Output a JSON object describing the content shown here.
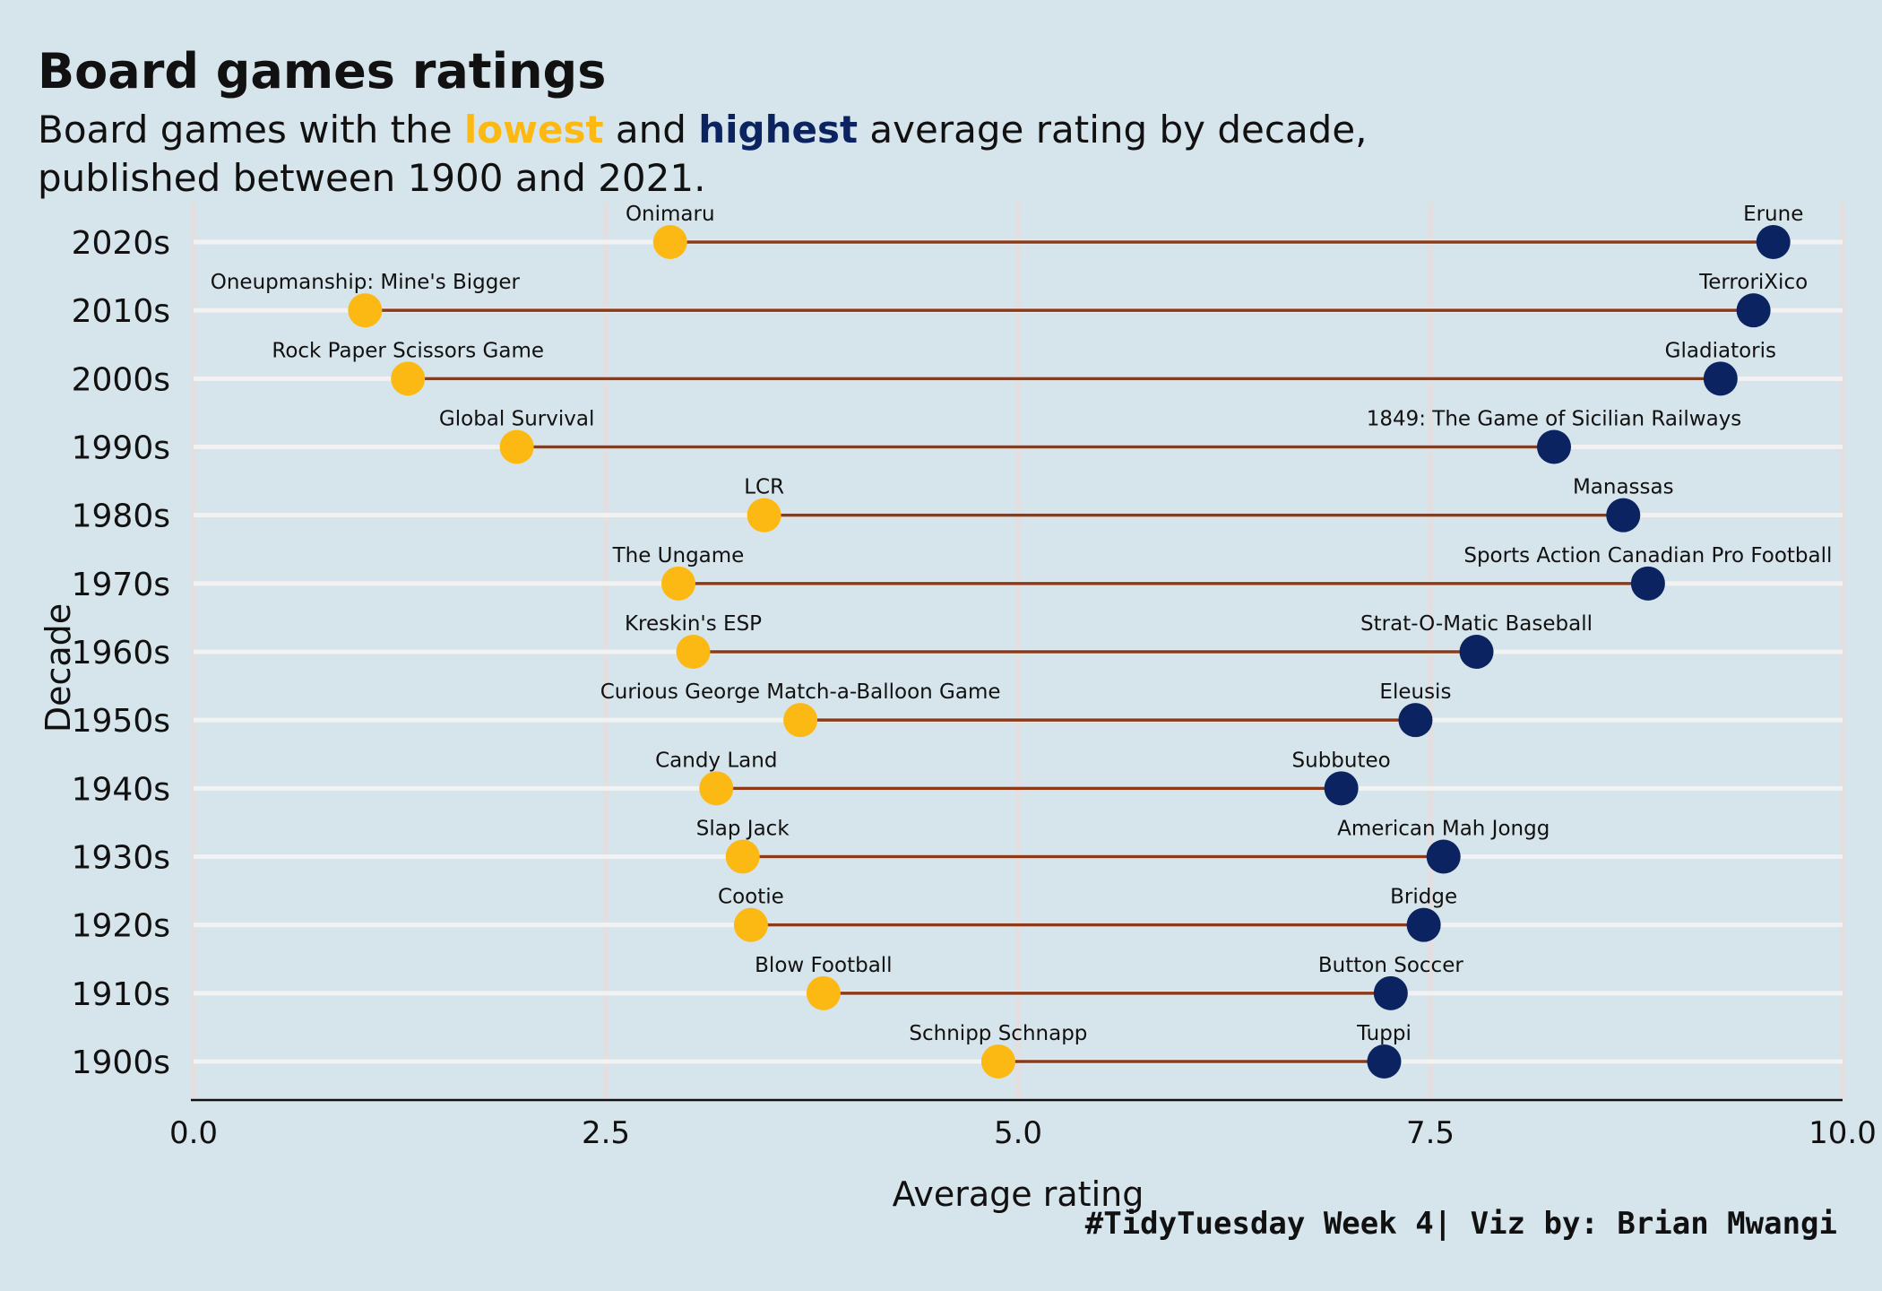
{
  "header": {
    "title": "Board games ratings",
    "subtitle_pre": "Board games with the ",
    "subtitle_low": "lowest",
    "subtitle_mid": " and ",
    "subtitle_high": "highest",
    "subtitle_post": " average rating by decade,",
    "subtitle_line2": "published between 1900 and 2021."
  },
  "caption": "#TidyTuesday Week 4| Viz by: Brian Mwangi",
  "colors": {
    "background": "#d6e4eb",
    "lowest": "#fdb913",
    "highest": "#0b2461",
    "segment": "#8b3a1a",
    "grid": "#e6dede"
  },
  "chart_data": {
    "type": "dumbbell",
    "xlabel": "Average rating",
    "ylabel": "Decade",
    "xlim": [
      0,
      10
    ],
    "xticks": [
      "0.0",
      "2.5",
      "5.0",
      "7.5",
      "10.0"
    ],
    "xtick_values": [
      0,
      2.5,
      5,
      7.5,
      10
    ],
    "grid": true,
    "rows": [
      {
        "decade": "2020s",
        "low_name": "Onimaru",
        "low": 2.89,
        "high_name": "Erune",
        "high": 9.58
      },
      {
        "decade": "2010s",
        "low_name": "Oneupmanship: Mine's Bigger",
        "low": 1.04,
        "high_name": "TerroriXico",
        "high": 9.46
      },
      {
        "decade": "2000s",
        "low_name": "Rock Paper Scissors Game",
        "low": 1.3,
        "high_name": "Gladiatoris",
        "high": 9.26
      },
      {
        "decade": "1990s",
        "low_name": "Global Survival",
        "low": 1.96,
        "high_name": "1849: The Game of Sicilian Railways",
        "high": 8.25
      },
      {
        "decade": "1980s",
        "low_name": "LCR",
        "low": 3.46,
        "high_name": "Manassas",
        "high": 8.67
      },
      {
        "decade": "1970s",
        "low_name": "The Ungame",
        "low": 2.94,
        "high_name": "Sports Action Canadian Pro Football",
        "high": 8.82
      },
      {
        "decade": "1960s",
        "low_name": "Kreskin's ESP",
        "low": 3.03,
        "high_name": "Strat-O-Matic Baseball",
        "high": 7.78
      },
      {
        "decade": "1950s",
        "low_name": "Curious George Match-a-Balloon Game",
        "low": 3.68,
        "high_name": "Eleusis",
        "high": 7.41
      },
      {
        "decade": "1940s",
        "low_name": "Candy Land",
        "low": 3.17,
        "high_name": "Subbuteo",
        "high": 6.96
      },
      {
        "decade": "1930s",
        "low_name": "Slap Jack",
        "low": 3.33,
        "high_name": "American Mah Jongg",
        "high": 7.58
      },
      {
        "decade": "1920s",
        "low_name": "Cootie",
        "low": 3.38,
        "high_name": "Bridge",
        "high": 7.46
      },
      {
        "decade": "1910s",
        "low_name": "Blow Football",
        "low": 3.82,
        "high_name": "Button Soccer",
        "high": 7.26
      },
      {
        "decade": "1900s",
        "low_name": "Schnipp Schnapp",
        "low": 4.88,
        "high_name": "Tuppi",
        "high": 7.22
      }
    ]
  }
}
